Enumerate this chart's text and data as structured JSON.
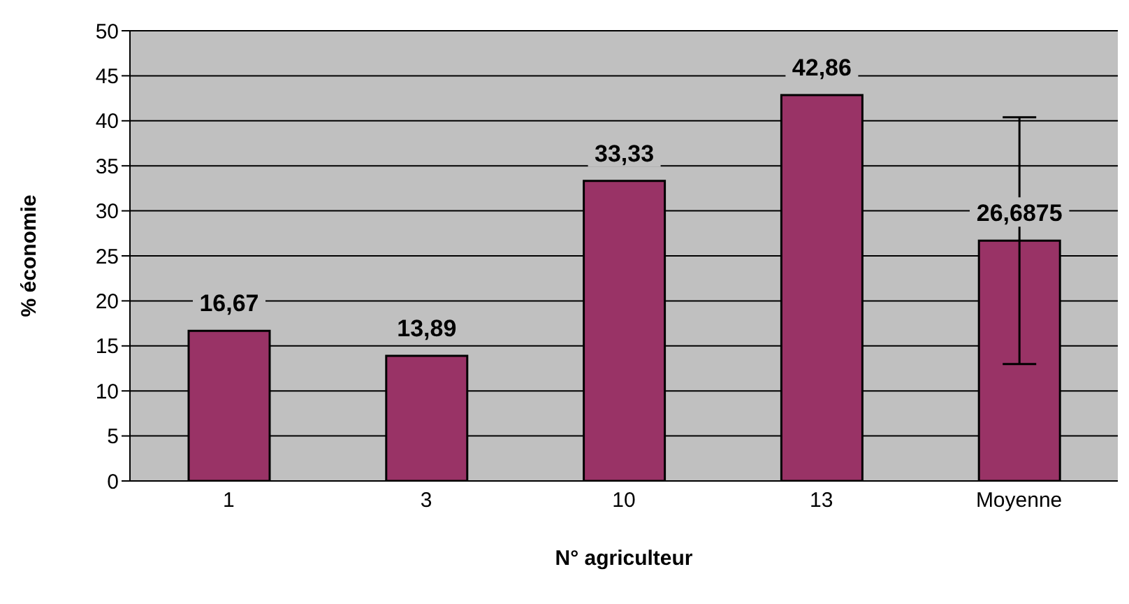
{
  "chart_data": {
    "type": "bar",
    "xlabel": "N° agriculteur",
    "ylabel": "% économie",
    "categories": [
      "1",
      "3",
      "10",
      "13",
      "Moyenne"
    ],
    "values": [
      16.67,
      13.89,
      33.33,
      42.86,
      26.6875
    ],
    "errors": [
      0,
      0,
      0,
      0,
      13.7
    ],
    "color": "#993366",
    "ylim": [
      0,
      50
    ],
    "yticks": [
      0,
      5,
      10,
      15,
      20,
      25,
      30,
      35,
      40,
      45,
      50
    ],
    "value_labels": [
      "16,67",
      "13,89",
      "33,33",
      "42,86",
      "26,6875"
    ],
    "grid": "y"
  }
}
